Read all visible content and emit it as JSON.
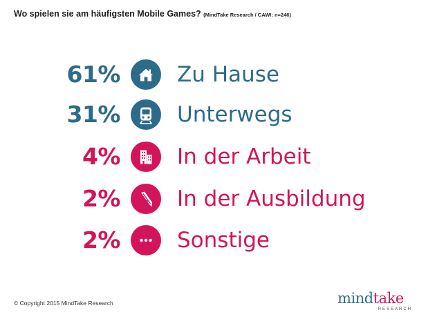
{
  "title": "Wo spielen sie am häufigsten Mobile Games?",
  "source": "(MindTake Research / CAWI: n=246)",
  "colors": {
    "blue": "#2c6b8a",
    "red": "#d4145a"
  },
  "chart_data": {
    "type": "table",
    "rows": [
      {
        "value": 61,
        "value_label": "61%",
        "label": "Zu Hause",
        "icon": "house-icon",
        "color": "#2c6b8a"
      },
      {
        "value": 31,
        "value_label": "31%",
        "label": "Unterwegs",
        "icon": "train-icon",
        "color": "#2c6b8a"
      },
      {
        "value": 4,
        "value_label": "4%",
        "label": "In der Arbeit",
        "icon": "office-buildings-icon",
        "color": "#d4145a"
      },
      {
        "value": 2,
        "value_label": "2%",
        "label": "In der Ausbildung",
        "icon": "fountain-pen-icon",
        "color": "#d4145a"
      },
      {
        "value": 2,
        "value_label": "2%",
        "label": "Sonstige",
        "icon": "ellipsis-icon",
        "color": "#d4145a"
      }
    ]
  },
  "footer": "© Copyright 2015 MindTake Research",
  "logo": {
    "main": "mindtake",
    "sub": "RESEARCH"
  }
}
